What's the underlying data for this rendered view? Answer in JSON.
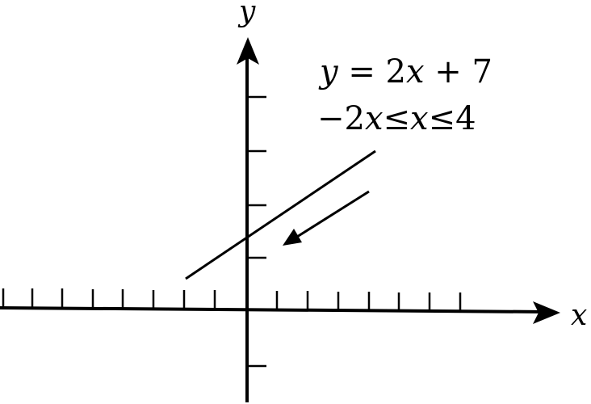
{
  "axes": {
    "x_label": "x",
    "y_label": "y"
  },
  "annotation": {
    "equation": {
      "lhs": "y",
      "rhs_prefix": " = 2",
      "rhs_var": "x",
      "rhs_suffix": " + 7"
    },
    "domain": {
      "part1": "−2",
      "var1": "x",
      "op1": "≤",
      "var2": "x",
      "op2": "≤",
      "part3": "4"
    }
  },
  "colors": {
    "ink": "#000000",
    "background": "#ffffff"
  }
}
